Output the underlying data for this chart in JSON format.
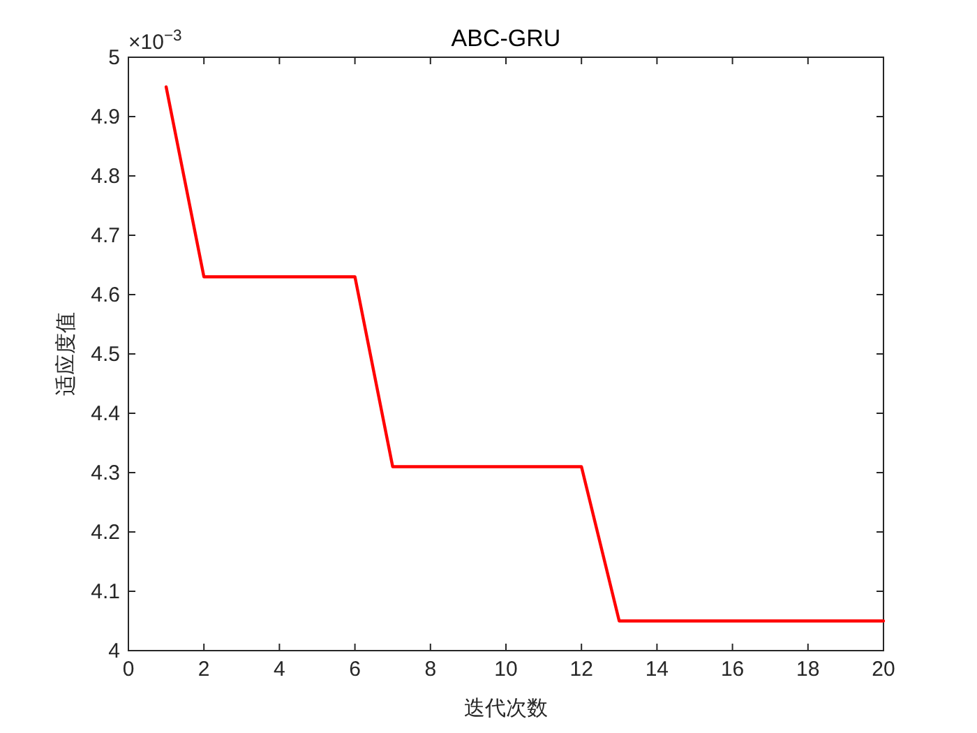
{
  "chart_data": {
    "type": "line",
    "title": "ABC-GRU",
    "xlabel": "迭代次数",
    "ylabel": "适应度值",
    "x": [
      1,
      2,
      3,
      4,
      5,
      6,
      7,
      8,
      9,
      10,
      11,
      12,
      13,
      14,
      15,
      16,
      17,
      18,
      19,
      20
    ],
    "series": [
      {
        "color": "#ff0000",
        "values": [
          4.95,
          4.63,
          4.63,
          4.63,
          4.63,
          4.63,
          4.31,
          4.31,
          4.31,
          4.31,
          4.31,
          4.31,
          4.05,
          4.05,
          4.05,
          4.05,
          4.05,
          4.05,
          4.05,
          4.05
        ]
      }
    ],
    "xlim": [
      0,
      20
    ],
    "xticks": [
      0,
      2,
      4,
      6,
      8,
      10,
      12,
      14,
      16,
      18,
      20
    ],
    "ylim": [
      4,
      5
    ],
    "yticks": [
      4,
      4.1,
      4.2,
      4.3,
      4.4,
      4.5,
      4.6,
      4.7,
      4.8,
      4.9,
      5
    ],
    "grid": false,
    "line_style": "solid",
    "annotations": [
      "×10$^{−3}$"
    ]
  }
}
